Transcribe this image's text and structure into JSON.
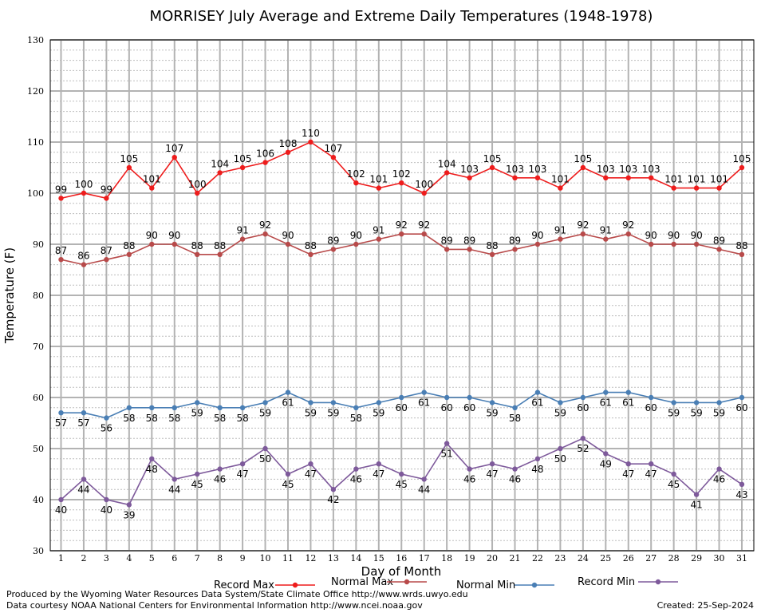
{
  "chart_data": {
    "type": "line",
    "title": "MORRISEY July Average and Extreme Daily Temperatures (1948-1978)",
    "xlabel": "Day of Month",
    "ylabel": "Temperature (F)",
    "ylim": [
      30,
      130
    ],
    "yticks": [
      30,
      40,
      50,
      60,
      70,
      80,
      90,
      100,
      110,
      120,
      130
    ],
    "x": [
      1,
      2,
      3,
      4,
      5,
      6,
      7,
      8,
      9,
      10,
      11,
      12,
      13,
      14,
      15,
      16,
      17,
      18,
      19,
      20,
      21,
      22,
      23,
      24,
      25,
      26,
      27,
      28,
      29,
      30,
      31
    ],
    "grid": true,
    "legend_position": "bottom",
    "series": [
      {
        "name": "Record Max",
        "color": "#ee1c1c",
        "values": [
          99,
          100,
          99,
          105,
          101,
          107,
          100,
          104,
          105,
          106,
          108,
          110,
          107,
          102,
          101,
          102,
          100,
          104,
          103,
          105,
          103,
          103,
          101,
          105,
          103,
          103,
          103,
          101,
          101,
          101,
          105
        ],
        "label_pos": "above"
      },
      {
        "name": "Normal Max",
        "color": "#b84a4a",
        "values": [
          87,
          86,
          87,
          88,
          90,
          90,
          88,
          88,
          91,
          92,
          90,
          88,
          89,
          90,
          91,
          92,
          92,
          89,
          89,
          88,
          89,
          90,
          91,
          92,
          91,
          92,
          90,
          90,
          90,
          89,
          88
        ],
        "label_pos": "above"
      },
      {
        "name": "Normal Min",
        "color": "#4a7fb5",
        "values": [
          57,
          57,
          56,
          58,
          58,
          58,
          59,
          58,
          58,
          59,
          61,
          59,
          59,
          58,
          59,
          60,
          61,
          60,
          60,
          59,
          58,
          61,
          59,
          60,
          61,
          61,
          60,
          59,
          59,
          59,
          60
        ],
        "label_pos": "below"
      },
      {
        "name": "Record Min",
        "color": "#7e5a9b",
        "values": [
          40,
          44,
          40,
          39,
          48,
          44,
          45,
          46,
          47,
          50,
          45,
          47,
          42,
          46,
          47,
          45,
          44,
          51,
          46,
          47,
          46,
          48,
          50,
          52,
          49,
          47,
          47,
          45,
          41,
          46,
          43
        ],
        "label_pos": "below"
      }
    ]
  },
  "footer": {
    "credit_line1": "Produced by the Wyoming Water Resources Data System/State Climate Office http://www.wrds.uwyo.edu",
    "credit_line2": "Data courtesy NOAA National Centers for Environmental Information http://www.ncei.noaa.gov",
    "created": "Created:  25-Sep-2024"
  }
}
